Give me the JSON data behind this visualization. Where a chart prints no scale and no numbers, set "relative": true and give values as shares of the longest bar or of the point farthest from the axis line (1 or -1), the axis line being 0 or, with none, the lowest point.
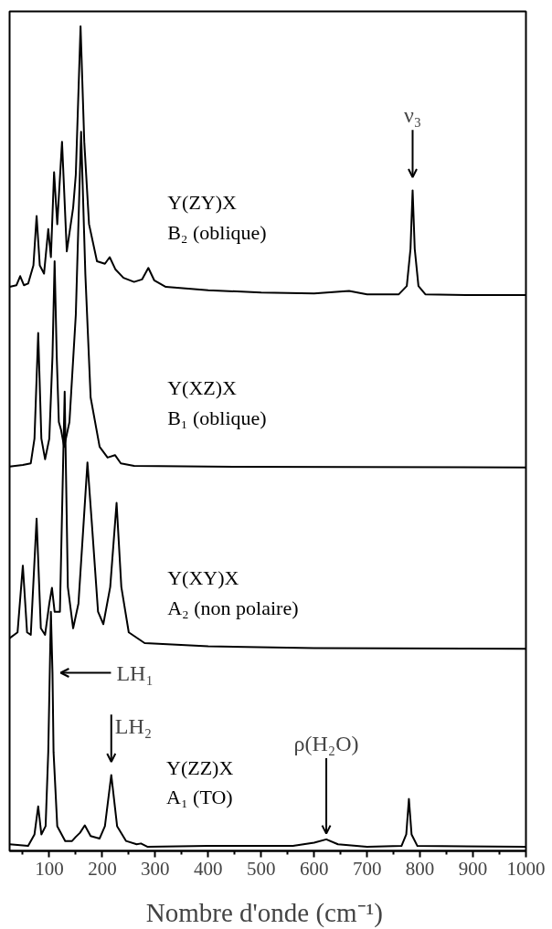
{
  "chart_data": {
    "type": "line",
    "relative": true,
    "xlabel": "Nombre d'onde  (cm⁻¹)",
    "xlim": [
      25,
      1000
    ],
    "xticks": [
      100,
      200,
      300,
      400,
      500,
      600,
      700,
      800,
      900,
      1000
    ],
    "grid": false,
    "legend": false,
    "line_style": "solid",
    "marker": "none",
    "series": [
      {
        "name": "Y(ZY)X\nB₂ (oblique)",
        "color": "#000000",
        "x": [
          25,
          38,
          45,
          52,
          60,
          70,
          76,
          82,
          90,
          98,
          103,
          109,
          115,
          124,
          133,
          145,
          150,
          159,
          166,
          175,
          190,
          205,
          214,
          225,
          240,
          260,
          275,
          287,
          298,
          320,
          400,
          500,
          600,
          666,
          700,
          760,
          775,
          782,
          786,
          790,
          797,
          810,
          900,
          1000
        ],
        "values": [
          0.684,
          0.686,
          0.697,
          0.686,
          0.688,
          0.71,
          0.77,
          0.71,
          0.7,
          0.754,
          0.72,
          0.823,
          0.76,
          0.86,
          0.727,
          0.78,
          0.82,
          1.0,
          0.86,
          0.76,
          0.715,
          0.712,
          0.72,
          0.705,
          0.695,
          0.69,
          0.693,
          0.707,
          0.692,
          0.684,
          0.68,
          0.677,
          0.676,
          0.679,
          0.675,
          0.675,
          0.685,
          0.73,
          0.801,
          0.73,
          0.685,
          0.675,
          0.674,
          0.674
        ]
      },
      {
        "name": "Y(XZ)X\nB₁ (oblique)",
        "color": "#000000",
        "x": [
          25,
          50,
          65,
          72,
          79,
          85,
          92,
          100,
          106,
          110,
          114,
          118,
          122,
          128,
          138,
          150,
          160,
          168,
          178,
          195,
          210,
          224,
          235,
          260,
          400,
          1000
        ],
        "values": [
          0.466,
          0.468,
          0.47,
          0.5,
          0.628,
          0.5,
          0.475,
          0.5,
          0.6,
          0.715,
          0.6,
          0.52,
          0.511,
          0.49,
          0.52,
          0.65,
          0.872,
          0.7,
          0.55,
          0.49,
          0.477,
          0.48,
          0.47,
          0.467,
          0.466,
          0.465
        ]
      },
      {
        "name": "Y(XY)X\nA₂ (non polaire)",
        "color": "#000000",
        "x": [
          25,
          40,
          50,
          58,
          65,
          76,
          84,
          92,
          100,
          105,
          110,
          120,
          129,
          135,
          145,
          155,
          165,
          172,
          180,
          192,
          202,
          215,
          227,
          236,
          250,
          280,
          400,
          600,
          1000
        ],
        "values": [
          0.258,
          0.265,
          0.346,
          0.265,
          0.262,
          0.403,
          0.27,
          0.262,
          0.3,
          0.319,
          0.29,
          0.29,
          0.557,
          0.32,
          0.27,
          0.3,
          0.4,
          0.471,
          0.4,
          0.29,
          0.275,
          0.32,
          0.422,
          0.32,
          0.265,
          0.252,
          0.248,
          0.246,
          0.245
        ]
      },
      {
        "name": "Y(ZZ)X\nA₁ (TO)",
        "color": "#000000",
        "x": [
          25,
          60,
          72,
          79,
          85,
          93,
          98,
          103,
          106,
          108,
          115,
          130,
          143,
          150,
          158,
          167,
          178,
          195,
          205,
          217,
          228,
          245,
          265,
          273,
          285,
          400,
          560,
          600,
          623,
          645,
          700,
          765,
          774,
          779,
          784,
          795,
          1000
        ],
        "values": [
          0.008,
          0.006,
          0.02,
          0.054,
          0.02,
          0.03,
          0.12,
          0.29,
          0.216,
          0.12,
          0.03,
          0.012,
          0.012,
          0.017,
          0.022,
          0.031,
          0.018,
          0.015,
          0.03,
          0.092,
          0.03,
          0.012,
          0.008,
          0.009,
          0.005,
          0.006,
          0.006,
          0.01,
          0.014,
          0.008,
          0.005,
          0.006,
          0.02,
          0.063,
          0.02,
          0.006,
          0.005
        ]
      }
    ],
    "annotations": [
      {
        "text": "ν₃",
        "x": 786,
        "y": 0.801
      },
      {
        "text": "LH₁",
        "x": 106,
        "y": 0.216
      },
      {
        "text": "LH₂",
        "x": 217,
        "y": 0.092
      },
      {
        "text": "ρ(H₂O)",
        "x": 623,
        "y": 0.014
      }
    ]
  }
}
